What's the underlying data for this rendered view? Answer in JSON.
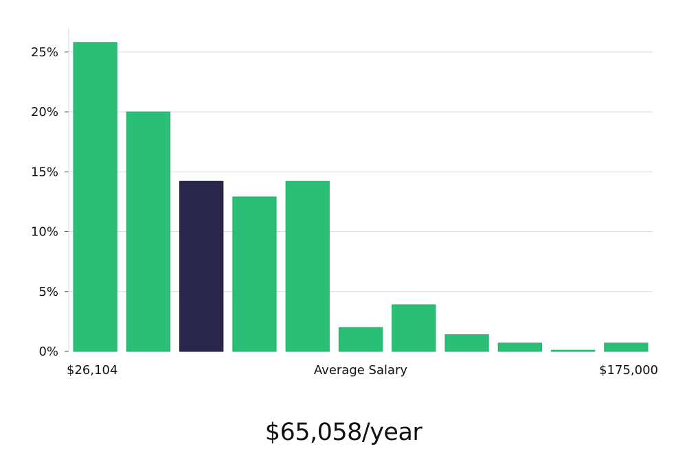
{
  "chart_data": {
    "type": "bar",
    "values": [
      25.8,
      20.0,
      14.2,
      12.9,
      14.2,
      2.0,
      3.9,
      1.4,
      0.7,
      0.1,
      0.7
    ],
    "highlight_index": 2,
    "ylim": [
      0,
      27
    ],
    "yticks": [
      0,
      5,
      10,
      15,
      20,
      25
    ],
    "ytick_labels": [
      "0%",
      "5%",
      "10%",
      "15%",
      "20%",
      "25%"
    ],
    "x_min_label": "$26,104",
    "x_max_label": "$175,000",
    "xlabel": "Average Salary",
    "grid": true,
    "colors": {
      "bar": "#2abe77",
      "highlight": "#28264a",
      "grid": "#d9d9d9",
      "axis": "#d6d6d6"
    }
  },
  "summary": {
    "salary_text": "$65,058/year"
  }
}
